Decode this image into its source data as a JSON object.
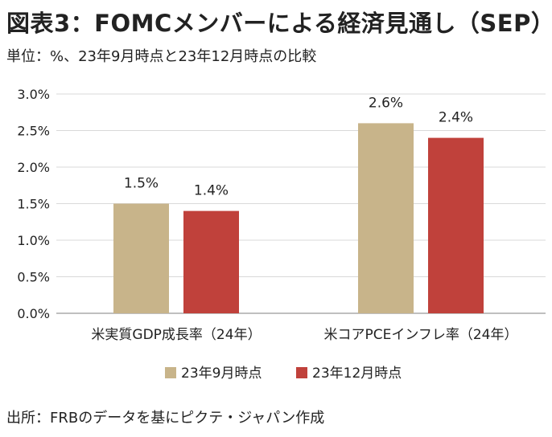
{
  "title": "図表3：FOMCメンバーによる経済見通し（SEP）",
  "subtitle": "単位：%、23年9月時点と23年12月時点の比較",
  "source": "出所：FRBのデータを基にピクテ・ジャパン作成",
  "chart_data": {
    "type": "bar",
    "categories": [
      "米実質GDP成長率（24年）",
      "米コアPCEインフレ率（24年）"
    ],
    "series": [
      {
        "name": "23年9月時点",
        "values": [
          1.5,
          2.6
        ],
        "labels": [
          "1.5%",
          "2.6%"
        ],
        "color": "#c8b48a"
      },
      {
        "name": "23年12月時点",
        "values": [
          1.4,
          2.4
        ],
        "labels": [
          "1.4%",
          "2.4%"
        ],
        "color": "#c0413b"
      }
    ],
    "ylim": [
      0,
      3.0
    ],
    "yticks": [
      "0.0%",
      "0.5%",
      "1.0%",
      "1.5%",
      "2.0%",
      "2.5%",
      "3.0%"
    ],
    "grid": true,
    "legend_position": "bottom"
  }
}
